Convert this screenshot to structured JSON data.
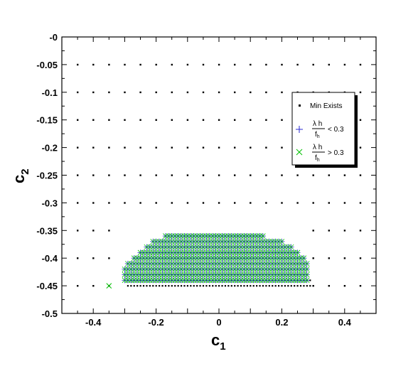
{
  "chart_data": {
    "type": "scatter",
    "title": "",
    "xlabel": {
      "main": "c",
      "sub": "1"
    },
    "ylabel": {
      "main": "c",
      "sub": "2"
    },
    "xlim": [
      -0.5,
      0.5
    ],
    "ylim": [
      -0.5,
      0.0
    ],
    "xticks": [
      -0.4,
      -0.2,
      0,
      0.2,
      0.4
    ],
    "xtick_labels": [
      "-0.4",
      "-0.2",
      "0",
      "0.2",
      "0.4"
    ],
    "yticks": [
      0,
      -0.05,
      -0.1,
      -0.15,
      -0.2,
      -0.25,
      -0.3,
      -0.35,
      -0.4,
      -0.45,
      -0.5
    ],
    "ytick_labels": [
      "-0",
      "-0.05",
      "-0.1",
      "-0.15",
      "-0.2",
      "-0.25",
      "-0.3",
      "-0.35",
      "-0.4",
      "-0.45",
      "-0.5"
    ],
    "grid": false,
    "legend_position": "right",
    "series": [
      {
        "name": "Min Exists",
        "marker": "square",
        "color": "#000000",
        "coarse_grid": {
          "x_start": -0.45,
          "x_step": 0.05,
          "x_count": 19,
          "y_values": [
            -0.05,
            -0.1,
            -0.15,
            -0.2,
            -0.25,
            -0.3,
            -0.35,
            -0.4,
            -0.45
          ]
        },
        "fine_grid": {
          "x_start": -0.29,
          "x_step": 0.01,
          "x_count": 59,
          "y_values": [
            -0.44,
            -0.45
          ]
        }
      },
      {
        "name": "λ h / f_h < 0.3",
        "legend_main": "< 0.3",
        "marker": "plus",
        "color": "#2a2ad0"
      },
      {
        "name": "λ h / f_h > 0.3",
        "legend_main": "> 0.3",
        "marker": "x",
        "color": "#00c000"
      }
    ],
    "region": {
      "x_start": -0.3,
      "x_step": 0.01,
      "x_count": 59,
      "y_step": 0.01,
      "bottom": -0.44,
      "top_profile": [
        [
          -0.3,
          -0.42
        ],
        [
          -0.25,
          -0.39
        ],
        [
          -0.2,
          -0.37
        ],
        [
          -0.15,
          -0.36
        ],
        [
          0.1,
          -0.36
        ],
        [
          0.18,
          -0.37
        ],
        [
          0.23,
          -0.38
        ],
        [
          0.26,
          -0.4
        ],
        [
          0.28,
          -0.41
        ]
      ]
    },
    "extra_points": [
      {
        "x": -0.35,
        "y": -0.45,
        "series": 2
      }
    ],
    "legend": {
      "lambda_label": "λ h",
      "denom_label": "f",
      "denom_sub": "h"
    }
  }
}
